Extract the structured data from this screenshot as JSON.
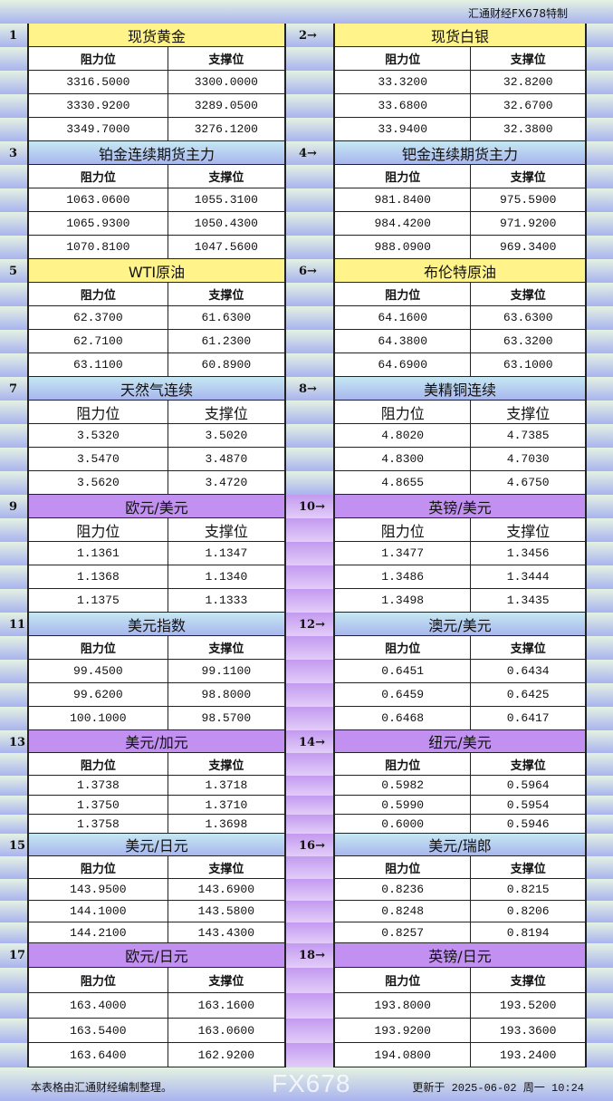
{
  "brand": "汇通财经FX678特制",
  "header_labels": {
    "resistance": "阻力位",
    "support": "支撑位"
  },
  "colors": {
    "yellow": "#fff389",
    "blue": "#b4cef0",
    "purple": "#c190f0"
  },
  "blocks": [
    {
      "num": "1",
      "title": "现货黄金",
      "color": "yellow",
      "rows": [
        [
          "3316.5000",
          "3300.0000"
        ],
        [
          "3330.9200",
          "3289.0500"
        ],
        [
          "3349.7000",
          "3276.1200"
        ]
      ]
    },
    {
      "num": "2→",
      "title": "现货白银",
      "color": "yellow",
      "rows": [
        [
          "33.3200",
          "32.8200"
        ],
        [
          "33.6800",
          "32.6700"
        ],
        [
          "33.9400",
          "32.3800"
        ]
      ]
    },
    {
      "num": "3",
      "title": "铂金连续期货主力",
      "color": "blue",
      "rows": [
        [
          "1063.0600",
          "1055.3100"
        ],
        [
          "1065.9300",
          "1050.4300"
        ],
        [
          "1070.8100",
          "1047.5600"
        ]
      ]
    },
    {
      "num": "4→",
      "title": "钯金连续期货主力",
      "color": "blue",
      "rows": [
        [
          "981.8400",
          "975.5900"
        ],
        [
          "984.4200",
          "971.9200"
        ],
        [
          "988.0900",
          "969.3400"
        ]
      ]
    },
    {
      "num": "5",
      "title": "WTI原油",
      "color": "yellow",
      "rows": [
        [
          "62.3700",
          "61.6300"
        ],
        [
          "62.7100",
          "61.2300"
        ],
        [
          "63.1100",
          "60.8900"
        ]
      ]
    },
    {
      "num": "6→",
      "title": "布伦特原油",
      "color": "yellow",
      "rows": [
        [
          "64.1600",
          "63.6300"
        ],
        [
          "64.3800",
          "63.3200"
        ],
        [
          "64.6900",
          "63.1000"
        ]
      ]
    },
    {
      "num": "7",
      "title": "天然气连续",
      "color": "blue",
      "rows": [
        [
          "3.5320",
          "3.5020"
        ],
        [
          "3.5470",
          "3.4870"
        ],
        [
          "3.5620",
          "3.4720"
        ]
      ]
    },
    {
      "num": "8→",
      "title": "美精铜连续",
      "color": "blue",
      "rows": [
        [
          "4.8020",
          "4.7385"
        ],
        [
          "4.8300",
          "4.7030"
        ],
        [
          "4.8655",
          "4.6750"
        ]
      ]
    },
    {
      "num": "9",
      "title": "欧元/美元",
      "color": "purple",
      "rows": [
        [
          "1.1361",
          "1.1347"
        ],
        [
          "1.1368",
          "1.1340"
        ],
        [
          "1.1375",
          "1.1333"
        ]
      ]
    },
    {
      "num": "10→",
      "title": "英镑/美元",
      "color": "purple",
      "rows": [
        [
          "1.3477",
          "1.3456"
        ],
        [
          "1.3486",
          "1.3444"
        ],
        [
          "1.3498",
          "1.3435"
        ]
      ]
    },
    {
      "num": "11",
      "title": "美元指数",
      "color": "blue",
      "rows": [
        [
          "99.4500",
          "99.1100"
        ],
        [
          "99.6200",
          "98.8000"
        ],
        [
          "100.1000",
          "98.5700"
        ]
      ]
    },
    {
      "num": "12→",
      "title": "澳元/美元",
      "color": "blue",
      "rows": [
        [
          "0.6451",
          "0.6434"
        ],
        [
          "0.6459",
          "0.6425"
        ],
        [
          "0.6468",
          "0.6417"
        ]
      ]
    },
    {
      "num": "13",
      "title": "美元/加元",
      "color": "purple",
      "rows": [
        [
          "1.3738",
          "1.3718"
        ],
        [
          "1.3750",
          "1.3710"
        ],
        [
          "1.3758",
          "1.3698"
        ]
      ]
    },
    {
      "num": "14→",
      "title": "纽元/美元",
      "color": "purple",
      "rows": [
        [
          "0.5982",
          "0.5964"
        ],
        [
          "0.5990",
          "0.5954"
        ],
        [
          "0.6000",
          "0.5946"
        ]
      ]
    },
    {
      "num": "15",
      "title": "美元/日元",
      "color": "blue",
      "rows": [
        [
          "143.9500",
          "143.6900"
        ],
        [
          "144.1000",
          "143.5800"
        ],
        [
          "144.2100",
          "143.4300"
        ]
      ]
    },
    {
      "num": "16→",
      "title": "美元/瑞郎",
      "color": "blue",
      "rows": [
        [
          "0.8236",
          "0.8215"
        ],
        [
          "0.8248",
          "0.8206"
        ],
        [
          "0.8257",
          "0.8194"
        ]
      ]
    },
    {
      "num": "17",
      "title": "欧元/日元",
      "color": "purple",
      "rows": [
        [
          "163.4000",
          "163.1600"
        ],
        [
          "163.5400",
          "163.0600"
        ],
        [
          "163.6400",
          "162.9200"
        ]
      ]
    },
    {
      "num": "18→",
      "title": "英镑/日元",
      "color": "purple",
      "rows": [
        [
          "193.8000",
          "193.5200"
        ],
        [
          "193.9200",
          "193.3600"
        ],
        [
          "194.0800",
          "193.2400"
        ]
      ]
    }
  ],
  "footer": {
    "note": "本表格由汇通财经编制整理。",
    "updated": "更新于 2025-06-02 周一 10:24",
    "watermark": "FX678"
  }
}
